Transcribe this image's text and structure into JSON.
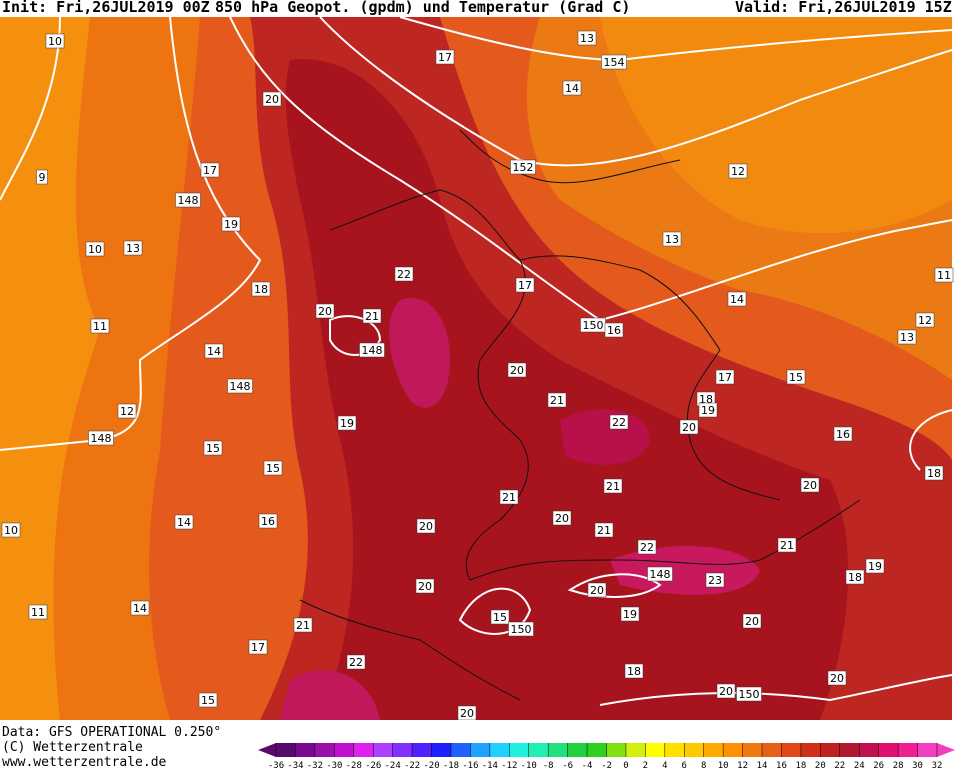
{
  "header": {
    "init": "Init: Fri,26JUL2019 00Z",
    "title": "850 hPa Geopot. (gpdm) und Temperatur (Grad C)",
    "valid": "Valid: Fri,26JUL2019 15Z"
  },
  "footer": [
    "Data: GFS OPERATIONAL 0.250°",
    "(C) Wetterzentrale",
    "www.wetterzentrale.de"
  ],
  "labels": [
    10,
    17,
    13,
    154,
    14,
    20,
    9,
    17,
    148,
    19,
    152,
    12,
    13,
    10,
    13,
    22,
    17,
    18,
    14,
    11,
    20,
    21,
    150,
    16,
    12,
    13,
    11,
    148,
    14,
    20,
    17,
    15,
    148,
    21,
    18,
    19,
    12,
    22,
    20,
    19,
    148,
    15,
    16,
    15,
    18,
    21,
    20,
    21,
    20,
    21,
    14,
    16,
    20,
    10,
    22,
    21,
    148,
    23,
    19,
    18,
    20,
    20,
    19,
    14,
    11,
    15,
    150,
    20,
    21,
    17,
    22,
    18,
    20,
    20,
    150,
    15,
    20
  ],
  "colorbar": {
    "ticks": [
      -36,
      -34,
      -32,
      -30,
      -28,
      -26,
      -24,
      -22,
      -20,
      -18,
      -16,
      -14,
      -12,
      -10,
      -8,
      -6,
      -4,
      -2,
      0,
      2,
      4,
      6,
      8,
      10,
      12,
      14,
      16,
      18,
      20,
      22,
      24,
      26,
      28,
      30,
      32
    ],
    "colors": [
      "#5a0a6e",
      "#7a0a8e",
      "#9a10aa",
      "#c010d0",
      "#e020f0",
      "#b040ff",
      "#8030ff",
      "#5020ff",
      "#2020ff",
      "#2060ff",
      "#20a0ff",
      "#20d0ff",
      "#20f0e0",
      "#20f0b0",
      "#20e080",
      "#20d040",
      "#30d020",
      "#80e010",
      "#d0f010",
      "#ffff00",
      "#ffe000",
      "#ffc800",
      "#ffa800",
      "#ff9000",
      "#f07810",
      "#e86018",
      "#e04818",
      "#d03018",
      "#c02020",
      "#b01830",
      "#c01050",
      "#e01070",
      "#f02090",
      "#f040c0"
    ]
  }
}
